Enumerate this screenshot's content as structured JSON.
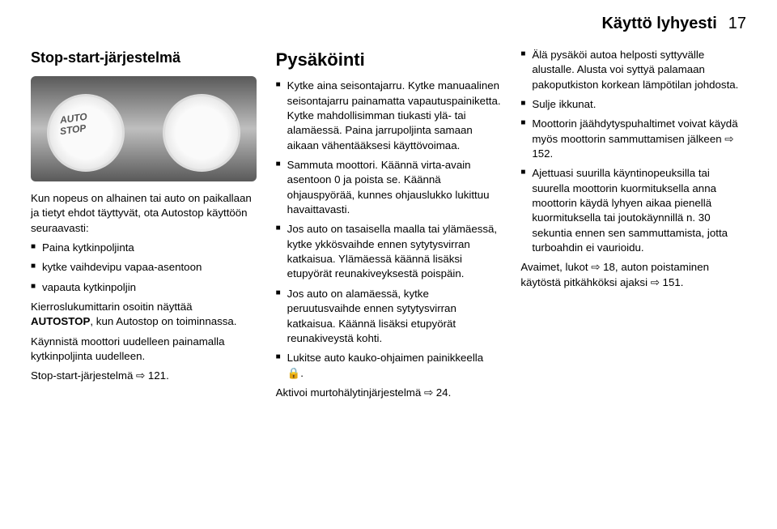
{
  "header": {
    "title": "Käyttö lyhyesti",
    "page": "17"
  },
  "col1": {
    "h": "Stop-start-järjestelmä",
    "intro": "Kun nopeus on alhainen tai auto on paikallaan ja tietyt ehdot täyttyvät, ota Autostop käyttöön seuraavasti:",
    "steps": [
      "Paina kytkinpoljinta",
      "kytke vaihdevipu vapaa-asentoon",
      "vapauta kytkinpoljin"
    ],
    "p1pre": "Kierroslukumittarin osoitin näyttää ",
    "p1bold": "AUTOSTOP",
    "p1post": ", kun Autostop on toiminnassa.",
    "p2": "Käynnistä moottori uudelleen painamalla kytkinpoljinta uudelleen.",
    "p3": "Stop-start-järjestelmä ⇨ 121."
  },
  "col2": {
    "h": "Pysäköinti",
    "items": [
      "Kytke aina seisontajarru. Kytke manuaalinen seisontajarru painamatta vapautuspainiketta. Kytke mahdollisimman tiukasti ylä- tai alamäessä. Paina jarrupoljinta samaan aikaan vähentääksesi käyttövoimaa.",
      "Sammuta moottori. Käännä virta-avain asentoon 0 ja poista se. Käännä ohjauspyörää, kunnes ohjauslukko lukittuu havaittavasti.",
      "Jos auto on tasaisella maalla tai ylämäessä, kytke ykkösvaihde ennen sytytysvirran katkaisua. Ylämäessä käännä lisäksi etupyörät reunakiveyksestä poispäin.",
      "Jos auto on alamäessä, kytke peruutusvaihde ennen sytytysvirran katkaisua. Käännä lisäksi etupyörät reunakiveystä kohti.",
      "Lukitse auto kauko-ohjaimen painikkeella 🔒."
    ],
    "pAfter": "Aktivoi murtohälytinjärjestelmä ⇨ 24."
  },
  "col3": {
    "items": [
      "Älä pysäköi autoa helposti syttyvälle alustalle. Alusta voi syttyä palamaan pakoputkiston korkean lämpötilan johdosta.",
      "Sulje ikkunat.",
      "Moottorin jäähdytyspuhaltimet voivat käydä myös moottorin sammuttamisen jälkeen ⇨ 152.",
      "Ajettuasi suurilla käyntinopeuksilla tai suurella moottorin kuormituksella anna moottorin käydä lyhyen aikaa pienellä kuormituksella tai joutokäynnillä n. 30 sekuntia ennen sen sammuttamista, jotta turboahdin ei vaurioidu."
    ],
    "pAfter": "Avaimet, lukot ⇨ 18, auton poistaminen käytöstä pitkähköksi ajaksi ⇨ 151."
  }
}
